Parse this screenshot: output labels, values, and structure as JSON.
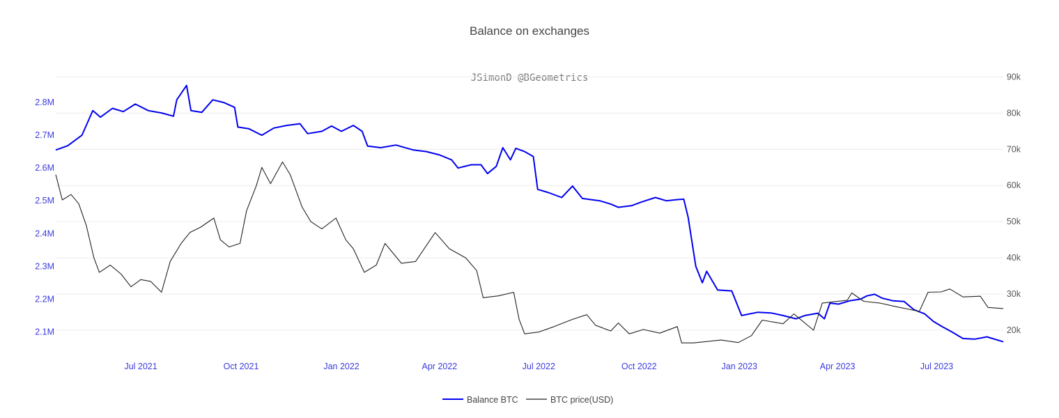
{
  "chart_data": {
    "type": "line",
    "title": "Balance on exchanges",
    "subtitle": "JSimonD @BGeometrics",
    "x_range": [
      "2021-04-14",
      "2023-08-31"
    ],
    "x_ticks": [
      {
        "date": "2021-07-01",
        "label": "Jul 2021"
      },
      {
        "date": "2021-10-01",
        "label": "Oct 2021"
      },
      {
        "date": "2022-01-01",
        "label": "Jan 2022"
      },
      {
        "date": "2022-04-01",
        "label": "Apr 2022"
      },
      {
        "date": "2022-07-01",
        "label": "Jul 2022"
      },
      {
        "date": "2022-10-01",
        "label": "Oct 2022"
      },
      {
        "date": "2023-01-01",
        "label": "Jan 2023"
      },
      {
        "date": "2023-04-01",
        "label": "Apr 2023"
      },
      {
        "date": "2023-07-01",
        "label": "Jul 2023"
      }
    ],
    "y_left": {
      "range": [
        2050000,
        2900000
      ],
      "ticks": [
        {
          "value": 2100000,
          "label": "2.1M"
        },
        {
          "value": 2200000,
          "label": "2.2M"
        },
        {
          "value": 2300000,
          "label": "2.3M"
        },
        {
          "value": 2400000,
          "label": "2.4M"
        },
        {
          "value": 2500000,
          "label": "2.5M"
        },
        {
          "value": 2600000,
          "label": "2.6M"
        },
        {
          "value": 2700000,
          "label": "2.7M"
        },
        {
          "value": 2800000,
          "label": "2.8M"
        }
      ]
    },
    "y_right": {
      "range": [
        15000,
        92000
      ],
      "ticks": [
        {
          "value": 20000,
          "label": "20k"
        },
        {
          "value": 30000,
          "label": "30k"
        },
        {
          "value": 40000,
          "label": "40k"
        },
        {
          "value": 50000,
          "label": "50k"
        },
        {
          "value": 60000,
          "label": "60k"
        },
        {
          "value": 70000,
          "label": "70k"
        },
        {
          "value": 80000,
          "label": "80k"
        },
        {
          "value": 90000,
          "label": "90k"
        }
      ]
    },
    "grid": true,
    "legend_position": "bottom-center",
    "series": [
      {
        "name": "Balance BTC",
        "axis": "left",
        "color": "#0000ee",
        "points": [
          [
            "2021-04-14",
            2655000
          ],
          [
            "2021-04-25",
            2668000
          ],
          [
            "2021-05-08",
            2700000
          ],
          [
            "2021-05-18",
            2775000
          ],
          [
            "2021-05-25",
            2755000
          ],
          [
            "2021-06-05",
            2782000
          ],
          [
            "2021-06-15",
            2772000
          ],
          [
            "2021-06-26",
            2795000
          ],
          [
            "2021-07-08",
            2775000
          ],
          [
            "2021-07-20",
            2768000
          ],
          [
            "2021-07-31",
            2758000
          ],
          [
            "2021-08-03",
            2808000
          ],
          [
            "2021-08-12",
            2852000
          ],
          [
            "2021-08-16",
            2775000
          ],
          [
            "2021-08-26",
            2770000
          ],
          [
            "2021-09-05",
            2808000
          ],
          [
            "2021-09-15",
            2800000
          ],
          [
            "2021-09-25",
            2785000
          ],
          [
            "2021-09-28",
            2725000
          ],
          [
            "2021-10-08",
            2720000
          ],
          [
            "2021-10-20",
            2700000
          ],
          [
            "2021-10-31",
            2722000
          ],
          [
            "2021-11-12",
            2730000
          ],
          [
            "2021-11-24",
            2735000
          ],
          [
            "2021-12-01",
            2705000
          ],
          [
            "2021-12-14",
            2712000
          ],
          [
            "2021-12-23",
            2728000
          ],
          [
            "2022-01-01",
            2712000
          ],
          [
            "2022-01-12",
            2730000
          ],
          [
            "2022-01-20",
            2712000
          ],
          [
            "2022-01-25",
            2667000
          ],
          [
            "2022-02-06",
            2662000
          ],
          [
            "2022-02-20",
            2670000
          ],
          [
            "2022-03-08",
            2655000
          ],
          [
            "2022-03-20",
            2650000
          ],
          [
            "2022-04-01",
            2640000
          ],
          [
            "2022-04-12",
            2625000
          ],
          [
            "2022-04-18",
            2600000
          ],
          [
            "2022-04-30",
            2610000
          ],
          [
            "2022-05-09",
            2610000
          ],
          [
            "2022-05-15",
            2583000
          ],
          [
            "2022-05-23",
            2605000
          ],
          [
            "2022-05-29",
            2662000
          ],
          [
            "2022-06-05",
            2625000
          ],
          [
            "2022-06-10",
            2660000
          ],
          [
            "2022-06-18",
            2650000
          ],
          [
            "2022-06-26",
            2635000
          ],
          [
            "2022-06-30",
            2535000
          ],
          [
            "2022-07-10",
            2525000
          ],
          [
            "2022-07-22",
            2510000
          ],
          [
            "2022-08-01",
            2545000
          ],
          [
            "2022-08-10",
            2507000
          ],
          [
            "2022-08-26",
            2500000
          ],
          [
            "2022-09-05",
            2490000
          ],
          [
            "2022-09-12",
            2480000
          ],
          [
            "2022-09-24",
            2485000
          ],
          [
            "2022-10-03",
            2496000
          ],
          [
            "2022-10-16",
            2510000
          ],
          [
            "2022-10-26",
            2500000
          ],
          [
            "2022-11-06",
            2504000
          ],
          [
            "2022-11-11",
            2505000
          ],
          [
            "2022-11-15",
            2450000
          ],
          [
            "2022-11-22",
            2300000
          ],
          [
            "2022-11-28",
            2250000
          ],
          [
            "2022-12-02",
            2285000
          ],
          [
            "2022-12-12",
            2228000
          ],
          [
            "2022-12-25",
            2225000
          ],
          [
            "2023-01-03",
            2150000
          ],
          [
            "2023-01-18",
            2160000
          ],
          [
            "2023-01-30",
            2158000
          ],
          [
            "2023-02-10",
            2150000
          ],
          [
            "2023-02-22",
            2140000
          ],
          [
            "2023-03-02",
            2150000
          ],
          [
            "2023-03-14",
            2157000
          ],
          [
            "2023-03-20",
            2140000
          ],
          [
            "2023-03-25",
            2188000
          ],
          [
            "2023-04-02",
            2185000
          ],
          [
            "2023-04-12",
            2195000
          ],
          [
            "2023-04-22",
            2200000
          ],
          [
            "2023-04-28",
            2210000
          ],
          [
            "2023-05-05",
            2215000
          ],
          [
            "2023-05-12",
            2203000
          ],
          [
            "2023-05-22",
            2195000
          ],
          [
            "2023-06-01",
            2193000
          ],
          [
            "2023-06-10",
            2168000
          ],
          [
            "2023-06-20",
            2155000
          ],
          [
            "2023-06-28",
            2132000
          ],
          [
            "2023-07-05",
            2118000
          ],
          [
            "2023-07-15",
            2100000
          ],
          [
            "2023-07-25",
            2080000
          ],
          [
            "2023-08-05",
            2078000
          ],
          [
            "2023-08-16",
            2085000
          ],
          [
            "2023-08-31",
            2070000
          ]
        ]
      },
      {
        "name": "BTC price(USD)",
        "axis": "right",
        "color": "#222222",
        "points": [
          [
            "2021-04-14",
            63000
          ],
          [
            "2021-04-20",
            56000
          ],
          [
            "2021-04-28",
            57500
          ],
          [
            "2021-05-05",
            55000
          ],
          [
            "2021-05-12",
            49000
          ],
          [
            "2021-05-19",
            40000
          ],
          [
            "2021-05-24",
            36000
          ],
          [
            "2021-06-03",
            38000
          ],
          [
            "2021-06-13",
            35500
          ],
          [
            "2021-06-22",
            32000
          ],
          [
            "2021-07-01",
            34000
          ],
          [
            "2021-07-10",
            33500
          ],
          [
            "2021-07-20",
            30500
          ],
          [
            "2021-07-28",
            39000
          ],
          [
            "2021-08-07",
            44000
          ],
          [
            "2021-08-15",
            47000
          ],
          [
            "2021-08-25",
            48500
          ],
          [
            "2021-09-06",
            51000
          ],
          [
            "2021-09-12",
            45000
          ],
          [
            "2021-09-20",
            43000
          ],
          [
            "2021-09-30",
            44000
          ],
          [
            "2021-10-06",
            53000
          ],
          [
            "2021-10-15",
            60000
          ],
          [
            "2021-10-20",
            65000
          ],
          [
            "2021-10-28",
            60500
          ],
          [
            "2021-11-08",
            66500
          ],
          [
            "2021-11-15",
            63000
          ],
          [
            "2021-11-26",
            54000
          ],
          [
            "2021-12-04",
            50000
          ],
          [
            "2021-12-14",
            48000
          ],
          [
            "2021-12-27",
            51000
          ],
          [
            "2022-01-05",
            45000
          ],
          [
            "2022-01-12",
            42500
          ],
          [
            "2022-01-22",
            36000
          ],
          [
            "2022-02-02",
            38000
          ],
          [
            "2022-02-10",
            44000
          ],
          [
            "2022-02-25",
            38500
          ],
          [
            "2022-03-10",
            39000
          ],
          [
            "2022-03-28",
            47000
          ],
          [
            "2022-04-10",
            42500
          ],
          [
            "2022-04-25",
            40000
          ],
          [
            "2022-05-05",
            36500
          ],
          [
            "2022-05-11",
            29000
          ],
          [
            "2022-05-25",
            29500
          ],
          [
            "2022-06-08",
            30500
          ],
          [
            "2022-06-13",
            23000
          ],
          [
            "2022-06-18",
            19000
          ],
          [
            "2022-07-01",
            19500
          ],
          [
            "2022-07-15",
            21000
          ],
          [
            "2022-08-01",
            23000
          ],
          [
            "2022-08-14",
            24300
          ],
          [
            "2022-08-22",
            21400
          ],
          [
            "2022-09-05",
            19800
          ],
          [
            "2022-09-12",
            22000
          ],
          [
            "2022-09-22",
            19000
          ],
          [
            "2022-10-05",
            20200
          ],
          [
            "2022-10-20",
            19200
          ],
          [
            "2022-11-05",
            21000
          ],
          [
            "2022-11-09",
            16500
          ],
          [
            "2022-11-20",
            16500
          ],
          [
            "2022-12-15",
            17300
          ],
          [
            "2022-12-31",
            16600
          ],
          [
            "2023-01-12",
            18500
          ],
          [
            "2023-01-22",
            22800
          ],
          [
            "2023-02-10",
            21800
          ],
          [
            "2023-02-20",
            24500
          ],
          [
            "2023-03-10",
            20000
          ],
          [
            "2023-03-18",
            27500
          ],
          [
            "2023-04-10",
            28300
          ],
          [
            "2023-04-14",
            30300
          ],
          [
            "2023-04-25",
            28000
          ],
          [
            "2023-05-10",
            27500
          ],
          [
            "2023-05-25",
            26500
          ],
          [
            "2023-06-15",
            25200
          ],
          [
            "2023-06-23",
            30500
          ],
          [
            "2023-07-05",
            30600
          ],
          [
            "2023-07-13",
            31400
          ],
          [
            "2023-07-25",
            29200
          ],
          [
            "2023-08-10",
            29400
          ],
          [
            "2023-08-17",
            26300
          ],
          [
            "2023-08-31",
            26000
          ]
        ]
      }
    ]
  }
}
